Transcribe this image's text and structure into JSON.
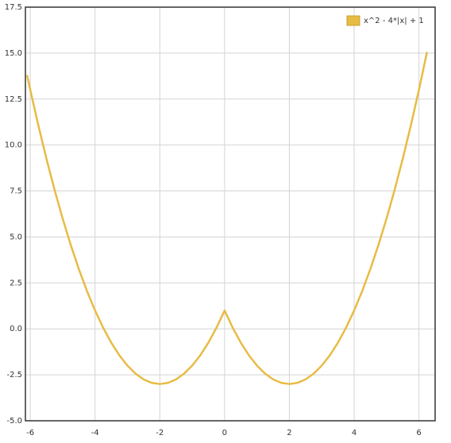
{
  "chart_data": {
    "type": "line",
    "x": [
      -6.1,
      -6,
      -5.75,
      -5.5,
      -5.25,
      -5,
      -4.75,
      -4.5,
      -4.25,
      -4,
      -3.75,
      -3.5,
      -3.25,
      -3,
      -2.75,
      -2.5,
      -2.25,
      -2,
      -1.75,
      -1.5,
      -1.25,
      -1,
      -0.75,
      -0.5,
      -0.25,
      0,
      0.25,
      0.5,
      0.75,
      1,
      1.25,
      1.5,
      1.75,
      2,
      2.25,
      2.5,
      2.75,
      3,
      3.25,
      3.5,
      3.75,
      4,
      4.25,
      4.5,
      4.75,
      5,
      5.25,
      5.5,
      5.75,
      6,
      6.25
    ],
    "series": [
      {
        "name": "x^2 - 4*|x| + 1",
        "color": "#e8bb45",
        "values": [
          13.81,
          13,
          11.0625,
          9.25,
          7.5625,
          6,
          4.5625,
          3.25,
          2.0625,
          1,
          0.0625,
          -0.75,
          -1.4375,
          -2,
          -2.4375,
          -2.75,
          -2.9375,
          -3,
          -2.9375,
          -2.75,
          -2.4375,
          -2,
          -1.4375,
          -0.75,
          0.0625,
          1,
          0.0625,
          -0.75,
          -1.4375,
          -2,
          -2.4375,
          -2.75,
          -2.9375,
          -3,
          -2.9375,
          -2.75,
          -2.4375,
          -2,
          -1.4375,
          -0.75,
          0.0625,
          1,
          2.0625,
          3.25,
          4.5625,
          6,
          7.5625,
          9.25,
          11.0625,
          13,
          15.0625
        ]
      }
    ],
    "xlim": [
      -6.15,
      6.5
    ],
    "ylim": [
      -5,
      17.5
    ],
    "xticks": [
      -6,
      -4,
      -2,
      0,
      2,
      4,
      6
    ],
    "yticks": [
      {
        "value": -5,
        "label": "-5.0"
      },
      -2.5,
      {
        "value": 0,
        "label": "0.0"
      },
      2.5,
      {
        "value": 5,
        "label": "5.0"
      },
      7.5,
      {
        "value": 10,
        "label": "10.0"
      },
      12.5,
      {
        "value": 15,
        "label": "15.0"
      },
      17.5
    ],
    "grid": true,
    "legend": "top-right"
  }
}
